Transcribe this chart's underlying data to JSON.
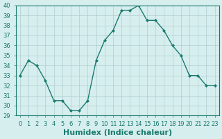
{
  "x": [
    0,
    1,
    2,
    3,
    4,
    5,
    6,
    7,
    8,
    9,
    10,
    11,
    12,
    13,
    14,
    15,
    16,
    17,
    18,
    19,
    20,
    21,
    22,
    23
  ],
  "y": [
    33,
    34.5,
    34,
    32.5,
    30.5,
    30.5,
    29.5,
    29.5,
    30.5,
    34.5,
    36.5,
    37.5,
    39.5,
    39.5,
    40,
    38.5,
    38.5,
    37.5,
    36,
    35,
    33,
    33,
    32,
    32
  ],
  "xlabel": "Humidex (Indice chaleur)",
  "ylim": [
    29,
    40
  ],
  "xlim": [
    -0.5,
    23.5
  ],
  "yticks": [
    29,
    30,
    31,
    32,
    33,
    34,
    35,
    36,
    37,
    38,
    39,
    40
  ],
  "xticks": [
    0,
    1,
    2,
    3,
    4,
    5,
    6,
    7,
    8,
    9,
    10,
    11,
    12,
    13,
    14,
    15,
    16,
    17,
    18,
    19,
    20,
    21,
    22,
    23
  ],
  "line_color": "#1a7a6e",
  "bg_color": "#d6eeee",
  "grid_color": "#b0cece",
  "tick_fontsize": 6,
  "xlabel_fontsize": 8
}
